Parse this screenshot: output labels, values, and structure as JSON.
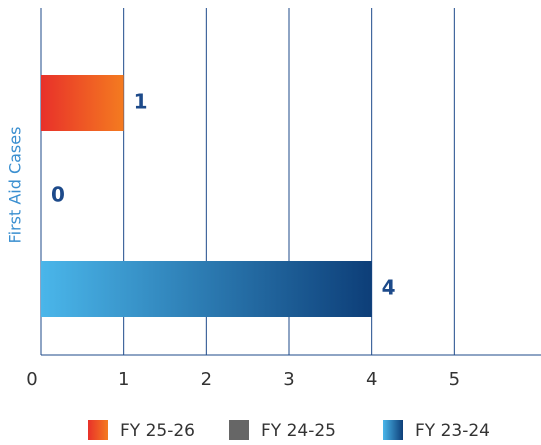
{
  "chart_data": {
    "type": "hbar",
    "categories": [
      "First Aid Cases"
    ],
    "series": [
      {
        "name": "FY 25-26",
        "color": [
          "#e8312a",
          "#f47b20"
        ],
        "values": [
          1
        ]
      },
      {
        "name": "FY 24-25",
        "color": [
          "#666666",
          "#666666"
        ],
        "values": [
          0
        ]
      },
      {
        "name": "FY 23-24",
        "color": [
          "#4ab6ea",
          "#0d3e78"
        ],
        "values": [
          4
        ]
      }
    ],
    "xlim": [
      0,
      6
    ],
    "xticks": [
      0,
      1,
      2,
      3,
      4,
      5
    ],
    "grid": true,
    "legend": "bottom"
  }
}
